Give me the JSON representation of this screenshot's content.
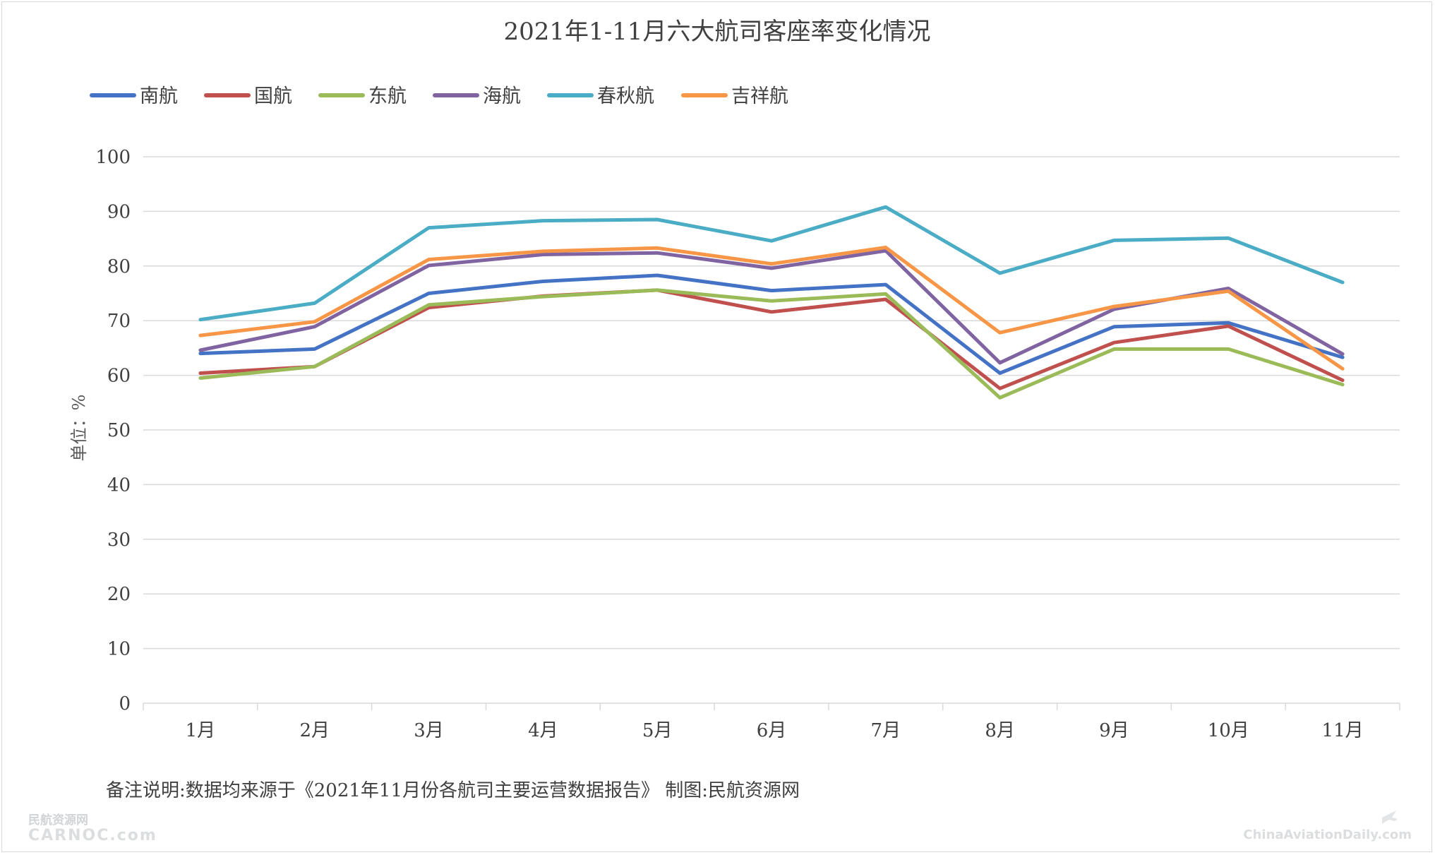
{
  "chart_data": {
    "type": "line",
    "title": "2021年1-11月六大航司客座率变化情况",
    "ylabel": "单位：%",
    "ylim": [
      0,
      100
    ],
    "yticks": [
      0,
      10,
      20,
      30,
      40,
      50,
      60,
      70,
      80,
      90,
      100
    ],
    "grid": true,
    "legend_position": "top-left",
    "categories": [
      "1月",
      "2月",
      "3月",
      "4月",
      "5月",
      "6月",
      "7月",
      "8月",
      "9月",
      "10月",
      "11月"
    ],
    "series": [
      {
        "name": "南航",
        "color": "#4472c4",
        "values": [
          64.0,
          64.8,
          75.0,
          77.2,
          78.3,
          75.5,
          76.6,
          60.4,
          68.9,
          69.6,
          63.3
        ]
      },
      {
        "name": "国航",
        "color": "#c0504d",
        "values": [
          60.4,
          61.6,
          72.4,
          74.5,
          75.6,
          71.6,
          73.9,
          57.6,
          66.0,
          69.0,
          59.1
        ]
      },
      {
        "name": "东航",
        "color": "#9bbb59",
        "values": [
          59.5,
          61.6,
          72.9,
          74.4,
          75.6,
          73.6,
          74.9,
          55.9,
          64.8,
          64.8,
          58.3
        ]
      },
      {
        "name": "海航",
        "color": "#8064a2",
        "values": [
          64.6,
          68.9,
          80.1,
          82.1,
          82.4,
          79.6,
          82.8,
          62.3,
          72.1,
          75.9,
          63.9
        ]
      },
      {
        "name": "春秋航",
        "color": "#4bacc6",
        "values": [
          70.2,
          73.2,
          87.0,
          88.3,
          88.5,
          84.6,
          90.8,
          78.7,
          84.7,
          85.1,
          77.0
        ]
      },
      {
        "name": "吉祥航",
        "color": "#f79646",
        "values": [
          67.3,
          69.8,
          81.2,
          82.7,
          83.3,
          80.4,
          83.4,
          67.8,
          72.6,
          75.4,
          61.2
        ]
      }
    ]
  },
  "footnote": "备注说明:数据均来源于《2021年11月份各航司主要运营数据报告》 制图:民航资源网",
  "watermark_left": {
    "line1": "民航资源网",
    "line2": "CARNOC.com"
  },
  "watermark_right": "ChinaAviationDaily.com"
}
